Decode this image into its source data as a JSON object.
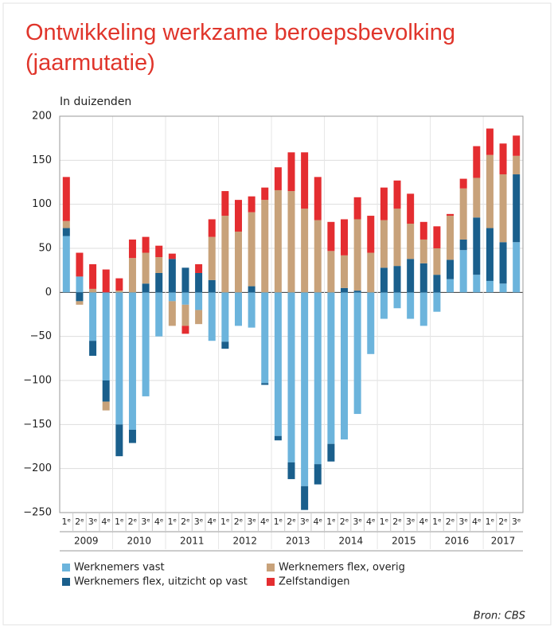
{
  "chart_data": {
    "type": "stacked_bar",
    "title": "Ontwikkeling werkzame beroepsbevolking (jaarmutatie)",
    "y_label": "In duizenden",
    "source": "Bron: CBS",
    "categories": [
      "1ᵉ",
      "2ᵉ",
      "3ᵉ",
      "4ᵉ",
      "1ᵉ",
      "2ᵉ",
      "3ᵉ",
      "4ᵉ",
      "1ᵉ",
      "2ᵉ",
      "3ᵉ",
      "4ᵉ",
      "1ᵉ",
      "2ᵉ",
      "3ᵉ",
      "4ᵉ",
      "1ᵉ",
      "2ᵉ",
      "3ᵉ",
      "4ᵉ",
      "1ᵉ",
      "2ᵉ",
      "3ᵉ",
      "4ᵉ",
      "1ᵉ",
      "2ᵉ",
      "3ᵉ",
      "4ᵉ",
      "1ᵉ",
      "2ᵉ",
      "3ᵉ",
      "4ᵉ",
      "1ᵉ",
      "2ᵉ",
      "3ᵉ"
    ],
    "years": [
      "2009",
      "2010",
      "2011",
      "2012",
      "2013",
      "2014",
      "2015",
      "2016",
      "2017"
    ],
    "series": [
      {
        "name": "Werknemers vast",
        "color": "#6cb4dc",
        "values": [
          64,
          18,
          -55,
          -100,
          -150,
          -156,
          -118,
          -50,
          -10,
          -14,
          -20,
          -55,
          -56,
          -38,
          -40,
          -103,
          -163,
          -193,
          -220,
          -195,
          -172,
          -167,
          -138,
          -70,
          -30,
          -18,
          -30,
          -38,
          -22,
          15,
          48,
          20,
          13,
          10,
          57
        ]
      },
      {
        "name": "Werknemers flex, uitzicht op vast",
        "color": "#1a5f8c",
        "values": [
          9,
          -10,
          -17,
          -24,
          -36,
          -15,
          10,
          22,
          38,
          28,
          22,
          14,
          -8,
          0,
          7,
          -2,
          -5,
          -19,
          -27,
          -23,
          -20,
          5,
          2,
          0,
          28,
          30,
          38,
          33,
          20,
          22,
          12,
          65,
          60,
          47,
          77
        ]
      },
      {
        "name": "Werknemers flex, overig",
        "color": "#c8a27a",
        "values": [
          8,
          -4,
          4,
          -10,
          2,
          39,
          35,
          18,
          -28,
          -24,
          -16,
          49,
          87,
          69,
          84,
          105,
          116,
          115,
          95,
          82,
          47,
          37,
          81,
          45,
          54,
          65,
          40,
          27,
          30,
          50,
          58,
          45,
          83,
          77,
          21
        ]
      },
      {
        "name": "Zelfstandigen",
        "color": "#e42d30",
        "values": [
          50,
          27,
          28,
          26,
          14,
          21,
          18,
          13,
          6,
          -9,
          10,
          20,
          28,
          36,
          18,
          14,
          26,
          44,
          64,
          49,
          33,
          41,
          25,
          42,
          37,
          32,
          34,
          20,
          25,
          2,
          11,
          36,
          30,
          35,
          23
        ]
      }
    ],
    "ylim": [
      -250,
      200
    ],
    "yticks": [
      200,
      150,
      100,
      50,
      0,
      {
        "value": -50,
        "label": "−50"
      },
      {
        "value": -100,
        "label": "−100"
      },
      {
        "value": -150,
        "label": "−150"
      },
      {
        "value": -200,
        "label": "−200"
      },
      {
        "value": -250,
        "label": "−250"
      }
    ],
    "grid": true
  }
}
